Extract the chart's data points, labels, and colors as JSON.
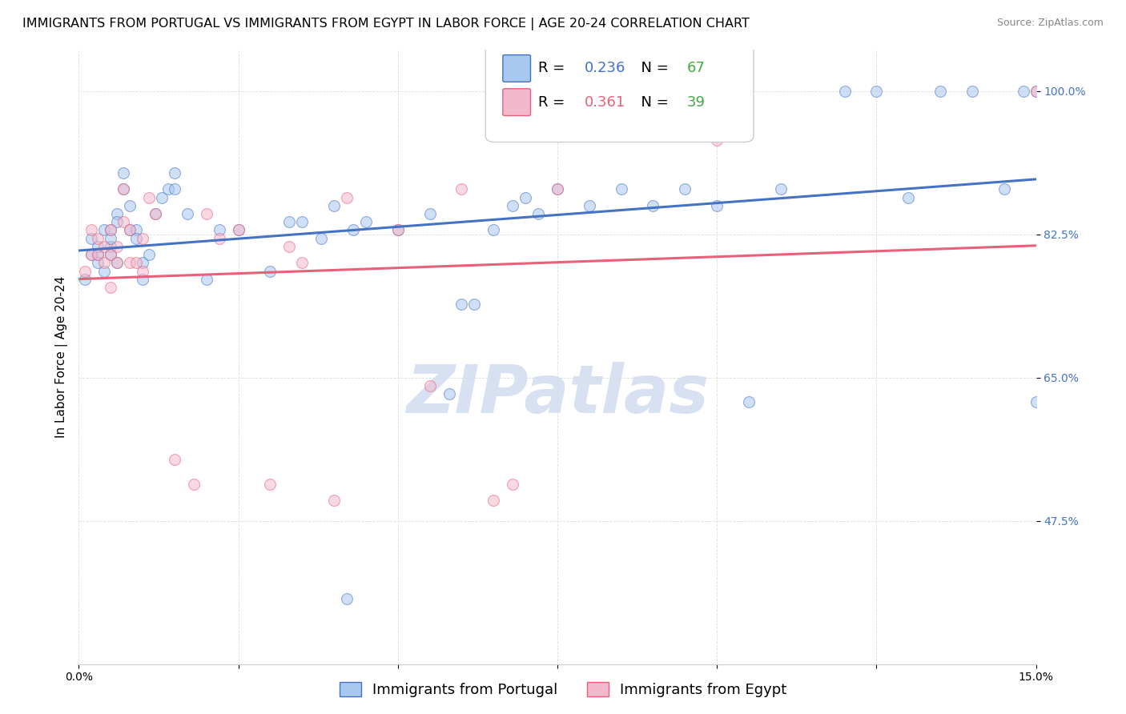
{
  "title": "IMMIGRANTS FROM PORTUGAL VS IMMIGRANTS FROM EGYPT IN LABOR FORCE | AGE 20-24 CORRELATION CHART",
  "source": "Source: ZipAtlas.com",
  "ylabel": "In Labor Force | Age 20-24",
  "xlim": [
    0.0,
    0.15
  ],
  "ylim": [
    0.3,
    1.05
  ],
  "yticks": [
    0.475,
    0.65,
    0.825,
    1.0
  ],
  "ytick_labels": [
    "47.5%",
    "65.0%",
    "82.5%",
    "100.0%"
  ],
  "xticks": [
    0.0,
    0.025,
    0.05,
    0.075,
    0.1,
    0.125,
    0.15
  ],
  "xtick_labels": [
    "0.0%",
    "",
    "",
    "",
    "",
    "",
    "15.0%"
  ],
  "portugal_R": 0.236,
  "portugal_N": 67,
  "egypt_R": 0.361,
  "egypt_N": 39,
  "portugal_color": "#A8C8F0",
  "egypt_color": "#F4B8CC",
  "portugal_line_color": "#4472C4",
  "egypt_line_color": "#E8607A",
  "portugal_N_color": "#44AA44",
  "egypt_N_color": "#44AA44",
  "watermark_color": "#D0DCF0",
  "portugal_x": [
    0.001,
    0.002,
    0.002,
    0.003,
    0.003,
    0.003,
    0.004,
    0.004,
    0.005,
    0.005,
    0.005,
    0.005,
    0.006,
    0.006,
    0.006,
    0.007,
    0.007,
    0.008,
    0.008,
    0.009,
    0.009,
    0.01,
    0.01,
    0.011,
    0.012,
    0.013,
    0.014,
    0.015,
    0.015,
    0.017,
    0.02,
    0.022,
    0.025,
    0.03,
    0.033,
    0.035,
    0.038,
    0.04,
    0.042,
    0.043,
    0.045,
    0.05,
    0.055,
    0.058,
    0.06,
    0.062,
    0.065,
    0.068,
    0.07,
    0.072,
    0.075,
    0.08,
    0.085,
    0.09,
    0.095,
    0.1,
    0.105,
    0.11,
    0.12,
    0.125,
    0.13,
    0.135,
    0.14,
    0.145,
    0.148,
    0.15,
    0.15
  ],
  "portugal_y": [
    0.77,
    0.8,
    0.82,
    0.8,
    0.81,
    0.79,
    0.83,
    0.78,
    0.81,
    0.83,
    0.82,
    0.8,
    0.85,
    0.84,
    0.79,
    0.9,
    0.88,
    0.86,
    0.83,
    0.83,
    0.82,
    0.79,
    0.77,
    0.8,
    0.85,
    0.87,
    0.88,
    0.9,
    0.88,
    0.85,
    0.77,
    0.83,
    0.83,
    0.78,
    0.84,
    0.84,
    0.82,
    0.86,
    0.38,
    0.83,
    0.84,
    0.83,
    0.85,
    0.63,
    0.74,
    0.74,
    0.83,
    0.86,
    0.87,
    0.85,
    0.88,
    0.86,
    0.88,
    0.86,
    0.88,
    0.86,
    0.62,
    0.88,
    1.0,
    1.0,
    0.87,
    1.0,
    1.0,
    0.88,
    1.0,
    1.0,
    0.62
  ],
  "egypt_x": [
    0.001,
    0.002,
    0.002,
    0.003,
    0.003,
    0.004,
    0.004,
    0.005,
    0.005,
    0.005,
    0.006,
    0.006,
    0.007,
    0.007,
    0.008,
    0.008,
    0.009,
    0.01,
    0.01,
    0.011,
    0.012,
    0.015,
    0.018,
    0.02,
    0.022,
    0.025,
    0.03,
    0.033,
    0.035,
    0.04,
    0.042,
    0.05,
    0.055,
    0.06,
    0.065,
    0.068,
    0.075,
    0.1,
    0.15
  ],
  "egypt_y": [
    0.78,
    0.8,
    0.83,
    0.8,
    0.82,
    0.81,
    0.79,
    0.83,
    0.8,
    0.76,
    0.81,
    0.79,
    0.84,
    0.88,
    0.83,
    0.79,
    0.79,
    0.78,
    0.82,
    0.87,
    0.85,
    0.55,
    0.52,
    0.85,
    0.82,
    0.83,
    0.52,
    0.81,
    0.79,
    0.5,
    0.87,
    0.83,
    0.64,
    0.88,
    0.5,
    0.52,
    0.88,
    0.94,
    1.0
  ],
  "background_color": "#FFFFFF",
  "grid_color": "#DDDDDD",
  "title_fontsize": 11.5,
  "axis_label_fontsize": 11,
  "tick_fontsize": 10,
  "legend_fontsize": 13,
  "source_fontsize": 9,
  "marker_size": 100,
  "marker_alpha": 0.55,
  "line_width": 2.2
}
